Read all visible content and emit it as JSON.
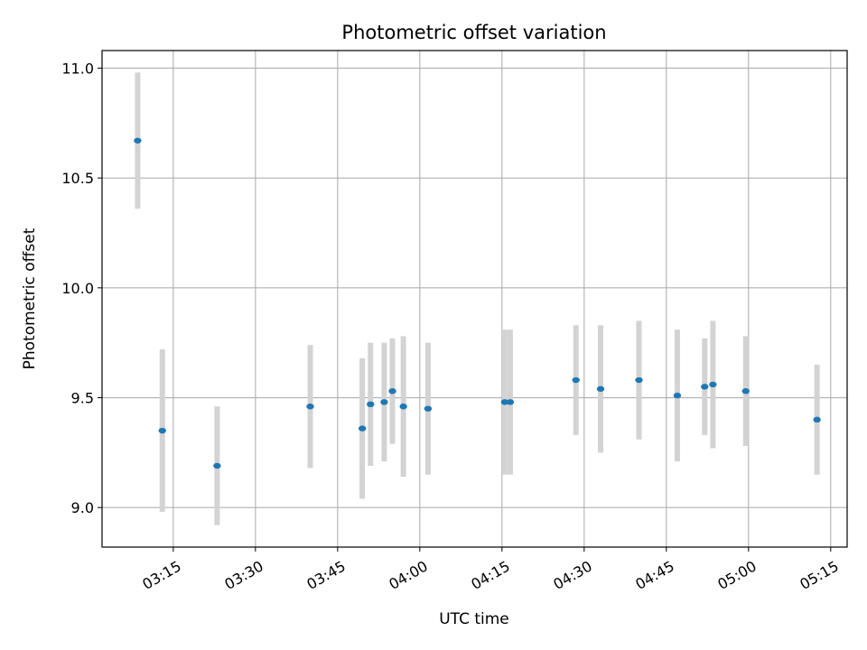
{
  "chart_data": {
    "type": "scatter",
    "title": "Photometric offset variation",
    "xlabel": "UTC time",
    "ylabel": "Photometric offset",
    "x_type": "time",
    "xlim": [
      "03:02",
      "05:18"
    ],
    "ylim": [
      8.82,
      11.08
    ],
    "x_ticks": [
      "03:15",
      "03:30",
      "03:45",
      "04:00",
      "04:15",
      "04:30",
      "04:45",
      "05:00",
      "05:15"
    ],
    "y_ticks": [
      9.0,
      9.5,
      10.0,
      10.5,
      11.0
    ],
    "y_tick_labels": [
      "9.0",
      "9.5",
      "10.0",
      "10.5",
      "11.0"
    ],
    "grid": true,
    "error_bar_color": "#d3d3d3",
    "point_color": "#1f77b4",
    "series": [
      {
        "points": [
          {
            "x": "03:08:30",
            "y": 10.67,
            "err": 0.31
          },
          {
            "x": "03:13:00",
            "y": 9.35,
            "err": 0.37
          },
          {
            "x": "03:23:00",
            "y": 9.19,
            "err": 0.27
          },
          {
            "x": "03:40:00",
            "y": 9.46,
            "err": 0.28
          },
          {
            "x": "03:49:30",
            "y": 9.36,
            "err": 0.32
          },
          {
            "x": "03:51:00",
            "y": 9.47,
            "err": 0.28
          },
          {
            "x": "03:53:30",
            "y": 9.48,
            "err": 0.27
          },
          {
            "x": "03:55:00",
            "y": 9.53,
            "err": 0.24
          },
          {
            "x": "03:57:00",
            "y": 9.46,
            "err": 0.32
          },
          {
            "x": "04:01:30",
            "y": 9.45,
            "err": 0.3
          },
          {
            "x": "04:15:30",
            "y": 9.48,
            "err": 0.33
          },
          {
            "x": "04:16:30",
            "y": 9.48,
            "err": 0.33
          },
          {
            "x": "04:28:30",
            "y": 9.58,
            "err": 0.25
          },
          {
            "x": "04:33:00",
            "y": 9.54,
            "err": 0.29
          },
          {
            "x": "04:40:00",
            "y": 9.58,
            "err": 0.27
          },
          {
            "x": "04:47:00",
            "y": 9.51,
            "err": 0.3
          },
          {
            "x": "04:52:00",
            "y": 9.55,
            "err": 0.22
          },
          {
            "x": "04:53:30",
            "y": 9.56,
            "err": 0.29
          },
          {
            "x": "04:59:30",
            "y": 9.53,
            "err": 0.25
          },
          {
            "x": "05:12:30",
            "y": 9.4,
            "err": 0.25
          }
        ]
      }
    ]
  }
}
